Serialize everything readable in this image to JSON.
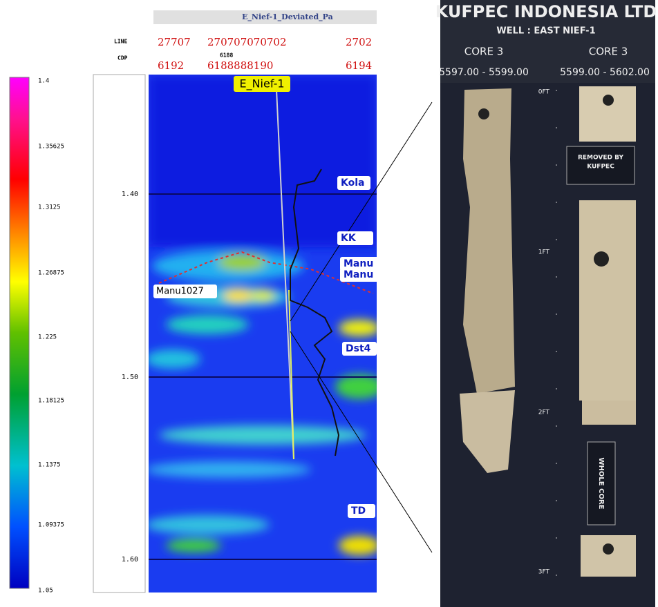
{
  "colorbar": {
    "ticks": [
      "1.4",
      "1.35625",
      "1.3125",
      "1.26875",
      "1.225",
      "1.18125",
      "1.1375",
      "1.09375",
      "1.05"
    ]
  },
  "seismic": {
    "title": "E_Nief-1_Deviated_Pa",
    "row_labels": [
      "LINE",
      "CDP"
    ],
    "line_numbers": [
      "27707",
      "270707070702",
      "2702"
    ],
    "cdp_small": "6188",
    "cdp_numbers": [
      "6192",
      "6188888190",
      "6194"
    ],
    "well": "E_Nief-1",
    "time_ticks": [
      "1.40",
      "1.50",
      "1.60"
    ],
    "horizons": [
      "Kola",
      "KK",
      "Manu",
      "Manu",
      "Dst4",
      "TD",
      "Manu1027"
    ]
  },
  "core_photo": {
    "company": "KUFPEC INDONESIA LTD",
    "well": "WELL : EAST NIEF-1",
    "cores": [
      "CORE 3",
      "CORE 3"
    ],
    "depths": [
      "5597.00 - 5599.00",
      "5599.00 - 5602.00"
    ],
    "scale": [
      "0FT",
      "1FT",
      "2FT",
      "3FT"
    ],
    "removed": [
      "REMOVED BY",
      "KUFPEC"
    ],
    "whole": "WHOLE CORE"
  }
}
